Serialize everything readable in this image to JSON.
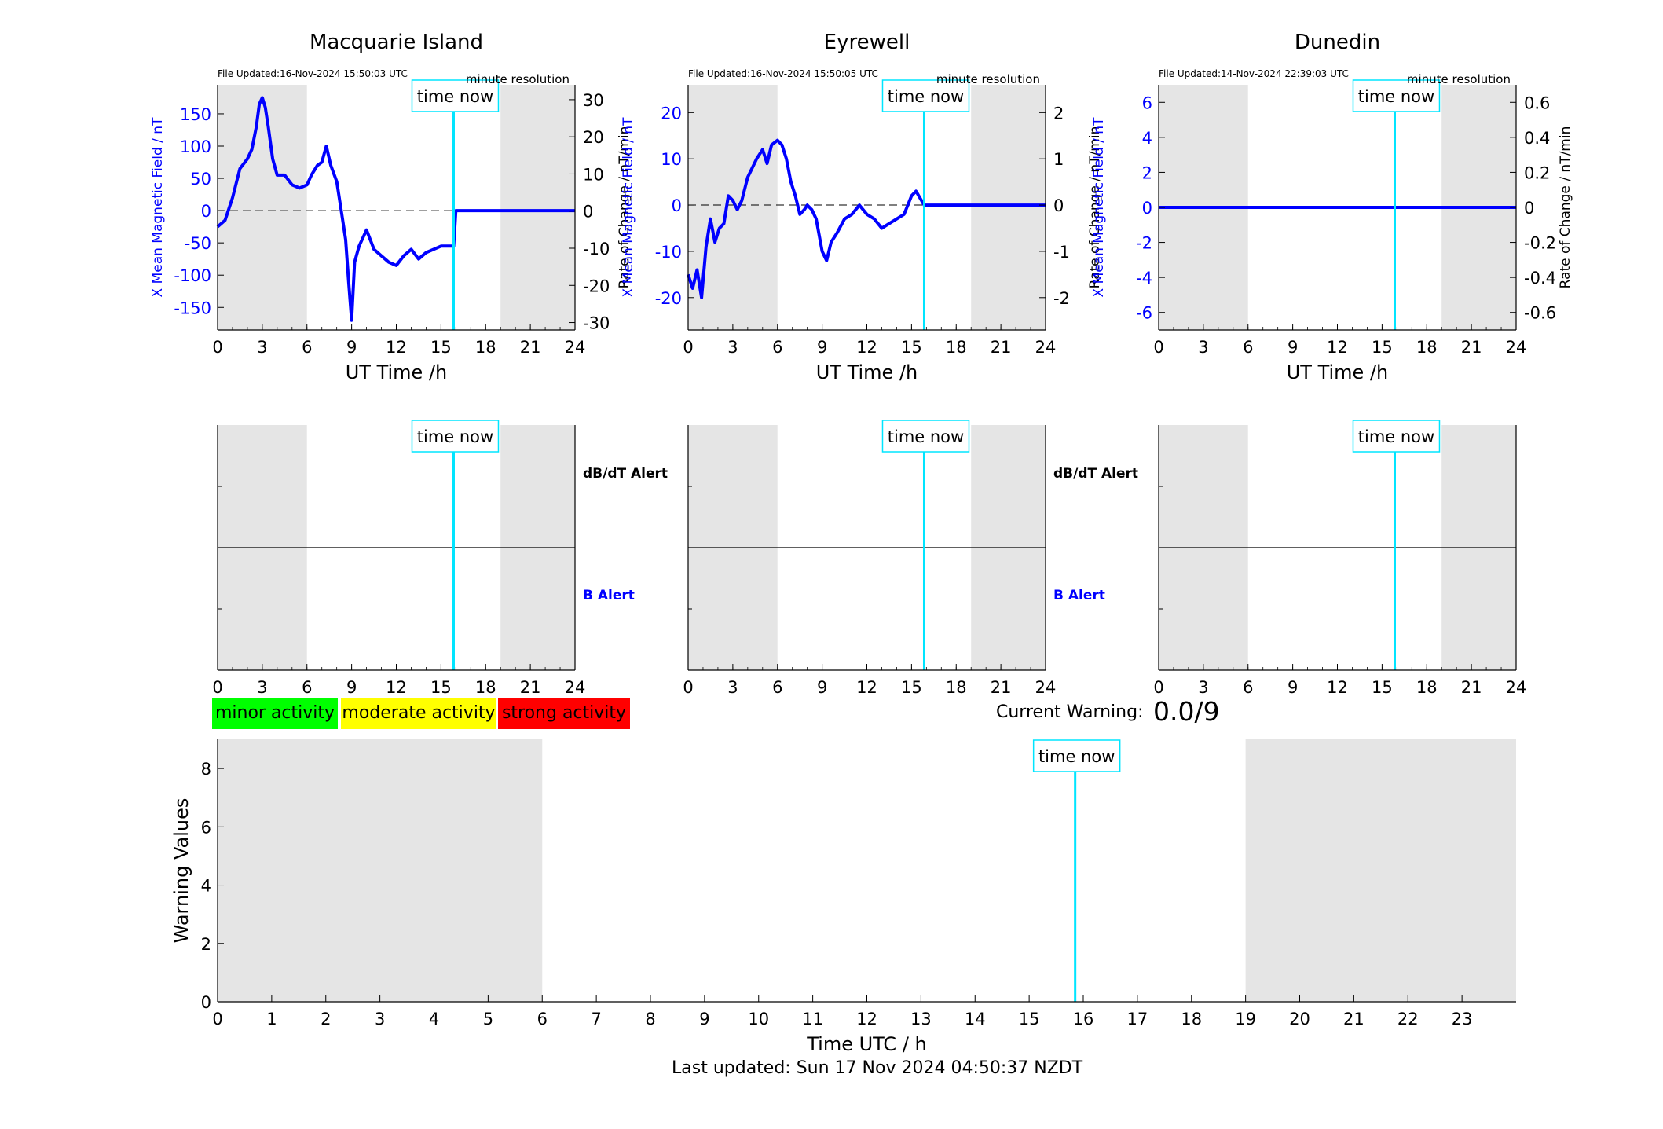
{
  "colors": {
    "field_line": "#0000ff",
    "rate_line": "#555555",
    "now_line": "#00e5ff",
    "shade": "#e5e5e5",
    "minor": "#00ff00",
    "moderate": "#ffff00",
    "strong": "#ff0000"
  },
  "legend": {
    "minor": "minor activity",
    "moderate": "moderate activity",
    "strong": "strong activity"
  },
  "current_warning": {
    "label": "Current Warning:",
    "value": "0.0/9"
  },
  "footer": {
    "last_updated": "Last updated: Sun 17 Nov 2024 04:50:37 NZDT"
  },
  "chart_data": [
    {
      "type": "line",
      "title": "Macquarie Island",
      "file_updated": "File Updated:16-Nov-2024 15:50:03 UTC",
      "resolution": "minute resolution",
      "xlabel": "UT Time /h",
      "ylabel": "X Mean Magnetic Field / nT",
      "ylabel_right": "Rate of Change / nT/min",
      "xlim": [
        0,
        24
      ],
      "ylim": [
        -185,
        195
      ],
      "ylim_right": [
        -32,
        34
      ],
      "xticks": [
        "0",
        "3",
        "6",
        "9",
        "12",
        "15",
        "18",
        "21",
        "24"
      ],
      "yticks": [
        150,
        100,
        50,
        0,
        -50,
        -100,
        -150
      ],
      "yticks_right": [
        30,
        20,
        10,
        0,
        -10,
        -20,
        -30
      ],
      "shaded_ranges": [
        [
          0,
          6
        ],
        [
          19,
          24
        ]
      ],
      "time_now": 15.85,
      "time_now_label": "time now",
      "series": [
        {
          "x": [
            0,
            0.5,
            1,
            1.5,
            2,
            2.3,
            2.6,
            2.8,
            3,
            3.2,
            3.4,
            3.7,
            4,
            4.5,
            5,
            5.5,
            6,
            6.3,
            6.7,
            7,
            7.3,
            7.6,
            8,
            8.3,
            8.6,
            8.8,
            9,
            9.2,
            9.5,
            10,
            10.5,
            11,
            11.5,
            12,
            12.5,
            13,
            13.5,
            14,
            14.5,
            15,
            15.85,
            16,
            24
          ],
          "y": [
            -25,
            -15,
            20,
            65,
            80,
            95,
            130,
            165,
            175,
            160,
            130,
            80,
            55,
            55,
            40,
            35,
            40,
            55,
            70,
            75,
            100,
            70,
            45,
            0,
            -45,
            -110,
            -170,
            -80,
            -55,
            -30,
            -60,
            -70,
            -80,
            -85,
            -70,
            -60,
            -75,
            -65,
            -60,
            -55,
            -55,
            0,
            0
          ]
        }
      ]
    },
    {
      "type": "line",
      "title": "Eyrewell",
      "file_updated": "File Updated:16-Nov-2024 15:50:05 UTC",
      "resolution": "minute resolution",
      "xlabel": "UT Time /h",
      "ylabel": "X Mean Magnetic Field / nT",
      "ylabel_right": "Rate of Change / nT/min",
      "xlim": [
        0,
        24
      ],
      "ylim": [
        -27,
        26
      ],
      "ylim_right": [
        -2.7,
        2.6
      ],
      "xticks": [
        "0",
        "3",
        "6",
        "9",
        "12",
        "15",
        "18",
        "21",
        "24"
      ],
      "yticks": [
        20,
        10,
        0,
        -10,
        -20
      ],
      "yticks_right": [
        2,
        1,
        0,
        -1,
        -2
      ],
      "shaded_ranges": [
        [
          0,
          6
        ],
        [
          19,
          24
        ]
      ],
      "time_now": 15.85,
      "time_now_label": "time now",
      "series": [
        {
          "x": [
            0,
            0.3,
            0.6,
            0.9,
            1.2,
            1.5,
            1.8,
            2.1,
            2.4,
            2.7,
            3,
            3.3,
            3.6,
            4,
            4.3,
            4.6,
            5,
            5.3,
            5.6,
            6,
            6.3,
            6.6,
            6.9,
            7.2,
            7.5,
            7.8,
            8,
            8.3,
            8.6,
            9,
            9.3,
            9.6,
            10,
            10.5,
            11,
            11.5,
            12,
            12.5,
            13,
            13.5,
            14,
            14.5,
            15,
            15.3,
            15.85,
            24
          ],
          "y": [
            -15,
            -18,
            -14,
            -20,
            -9,
            -3,
            -8,
            -5,
            -4,
            2,
            1,
            -1,
            1,
            6,
            8,
            10,
            12,
            9,
            13,
            14,
            13,
            10,
            5,
            2,
            -2,
            -1,
            0,
            -1,
            -3,
            -10,
            -12,
            -8,
            -6,
            -3,
            -2,
            0,
            -2,
            -3,
            -5,
            -4,
            -3,
            -2,
            2,
            3,
            0,
            0
          ]
        }
      ]
    },
    {
      "type": "line",
      "title": "Dunedin",
      "file_updated": "File Updated:14-Nov-2024 22:39:03 UTC",
      "resolution": "minute resolution",
      "xlabel": "UT Time /h",
      "ylabel": "X Mean Magnetic Field / nT",
      "ylabel_right": "Rate of Change / nT/min",
      "xlim": [
        0,
        24
      ],
      "ylim": [
        -7,
        7
      ],
      "ylim_right": [
        -0.7,
        0.7
      ],
      "xticks": [
        "0",
        "3",
        "6",
        "9",
        "12",
        "15",
        "18",
        "21",
        "24"
      ],
      "yticks": [
        6,
        4,
        2,
        0,
        -2,
        -4,
        -6
      ],
      "yticks_right": [
        "0.6",
        "0.4",
        "0.2",
        "0",
        "-0.2",
        "-0.4",
        "-0.6"
      ],
      "shaded_ranges": [
        [
          0,
          6
        ],
        [
          19,
          24
        ]
      ],
      "time_now": 15.85,
      "time_now_label": "time now",
      "series": [
        {
          "x": [
            0,
            24
          ],
          "y": [
            0,
            0
          ]
        }
      ]
    },
    {
      "type": "line",
      "title": "",
      "alert_labels": {
        "top": "dB/dT Alert",
        "bottom": "B Alert"
      },
      "xlim": [
        0,
        24
      ],
      "xticks": [
        "0",
        "3",
        "6",
        "9",
        "12",
        "15",
        "18",
        "21",
        "24"
      ],
      "shaded_ranges": [
        [
          0,
          6
        ],
        [
          19,
          24
        ]
      ],
      "time_now": 15.85,
      "time_now_label": "time now"
    },
    {
      "type": "line",
      "title": "",
      "alert_labels": {
        "top": "dB/dT Alert",
        "bottom": "B Alert"
      },
      "xlim": [
        0,
        24
      ],
      "xticks": [
        "0",
        "3",
        "6",
        "9",
        "12",
        "15",
        "18",
        "21",
        "24"
      ],
      "shaded_ranges": [
        [
          0,
          6
        ],
        [
          19,
          24
        ]
      ],
      "time_now": 15.85,
      "time_now_label": "time now"
    },
    {
      "type": "line",
      "title": "",
      "xlim": [
        0,
        24
      ],
      "xticks": [
        "0",
        "3",
        "6",
        "9",
        "12",
        "15",
        "18",
        "21",
        "24"
      ],
      "shaded_ranges": [
        [
          0,
          6
        ],
        [
          19,
          24
        ]
      ],
      "time_now": 15.85,
      "time_now_label": "time now"
    },
    {
      "type": "bar",
      "title": "",
      "xlabel": "Time UTC / h",
      "ylabel": "Warning Values",
      "xlim": [
        0,
        24
      ],
      "ylim": [
        0,
        9
      ],
      "xticks": [
        "0",
        "1",
        "2",
        "3",
        "4",
        "5",
        "6",
        "7",
        "8",
        "9",
        "10",
        "11",
        "12",
        "13",
        "14",
        "15",
        "16",
        "17",
        "18",
        "19",
        "20",
        "21",
        "22",
        "23"
      ],
      "yticks": [
        "0",
        "2",
        "4",
        "6",
        "8"
      ],
      "shaded_ranges": [
        [
          0,
          6
        ],
        [
          19,
          24
        ]
      ],
      "time_now": 15.85,
      "time_now_label": "time now",
      "values": []
    }
  ]
}
